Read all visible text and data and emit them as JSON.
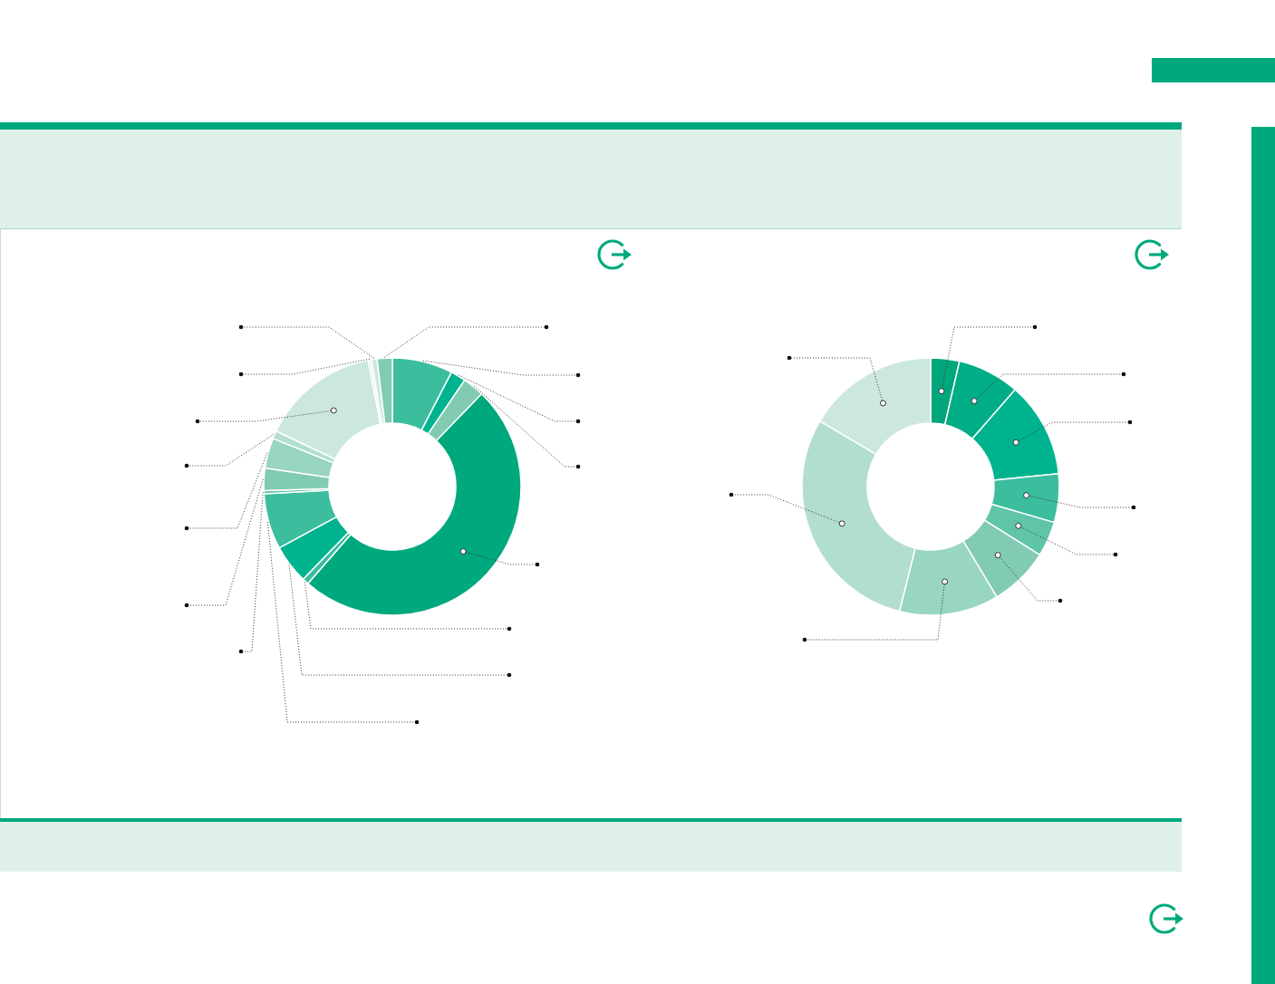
{
  "chart_data": [
    {
      "type": "donut",
      "categories": [
        null,
        null,
        null,
        null,
        null,
        null,
        null,
        null,
        null,
        null,
        null,
        null,
        null,
        null,
        null
      ],
      "values": [
        7.6,
        1.9,
        2.7,
        49.2,
        0.8,
        4.9,
        7.0,
        0.4,
        2.8,
        3.8,
        1.0,
        14.9,
        0.4,
        0.7,
        1.9
      ],
      "colors": [
        "#3bbd9e",
        "#00b38f",
        "#81cbb3",
        "#00a87d",
        "#3bbd9e",
        "#00b38f",
        "#3bbd9e",
        "#5fc4a8",
        "#81cbb3",
        "#98d5c3",
        "#b2ded0",
        "#cce8dd",
        "#e5f3ee",
        "#cce8dd",
        "#81cbb3"
      ]
    },
    {
      "type": "donut",
      "categories": [
        null,
        null,
        null,
        null,
        null,
        null,
        null,
        null,
        null
      ],
      "values": [
        3.6,
        7.8,
        12.0,
        6.1,
        4.4,
        7.5,
        12.5,
        29.6,
        16.5
      ],
      "colors": [
        "#00a77b",
        "#00ad85",
        "#00b38f",
        "#3bbd9e",
        "#5fc4a8",
        "#81cbb3",
        "#98d5c3",
        "#b2ded0",
        "#cce8dd"
      ]
    }
  ]
}
